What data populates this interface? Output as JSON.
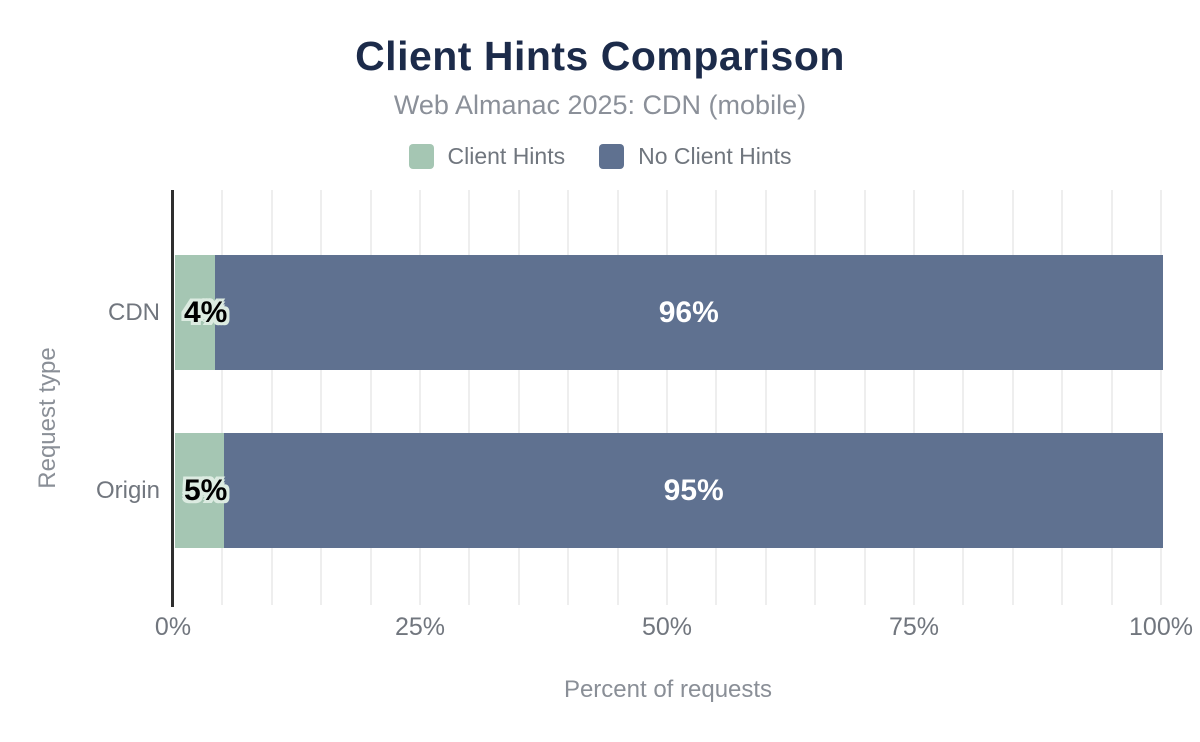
{
  "title": "Client Hints Comparison",
  "subtitle": "Web Almanac 2025: CDN (mobile)",
  "legend": [
    {
      "label": "Client Hints",
      "color": "#a5c6b3"
    },
    {
      "label": "No Client Hints",
      "color": "#5f7190"
    }
  ],
  "chart_data": {
    "type": "bar",
    "orientation": "horizontal-stacked",
    "categories": [
      "CDN",
      "Origin"
    ],
    "series": [
      {
        "name": "Client Hints",
        "color": "#a5c6b3",
        "values": [
          4,
          5
        ],
        "value_labels": [
          "4%",
          "5%"
        ]
      },
      {
        "name": "No Client Hints",
        "color": "#5f7190",
        "values": [
          96,
          95
        ],
        "value_labels": [
          "96%",
          "95%"
        ]
      }
    ],
    "xlabel": "Percent of requests",
    "ylabel": "Request type",
    "xlim": [
      0,
      100
    ],
    "x_ticks": [
      {
        "value": 0,
        "label": "0%"
      },
      {
        "value": 25,
        "label": "25%"
      },
      {
        "value": 50,
        "label": "50%"
      },
      {
        "value": 75,
        "label": "75%"
      },
      {
        "value": 100,
        "label": "100%"
      }
    ],
    "grid": {
      "vertical_step_percent": 5,
      "color": "#eeeeee"
    },
    "colors": {
      "title": "#1c2b4a",
      "subtitle": "#8b9099",
      "tick_text": "#71767e",
      "axis_line": "#2e2e2e",
      "background": "#ffffff"
    }
  }
}
